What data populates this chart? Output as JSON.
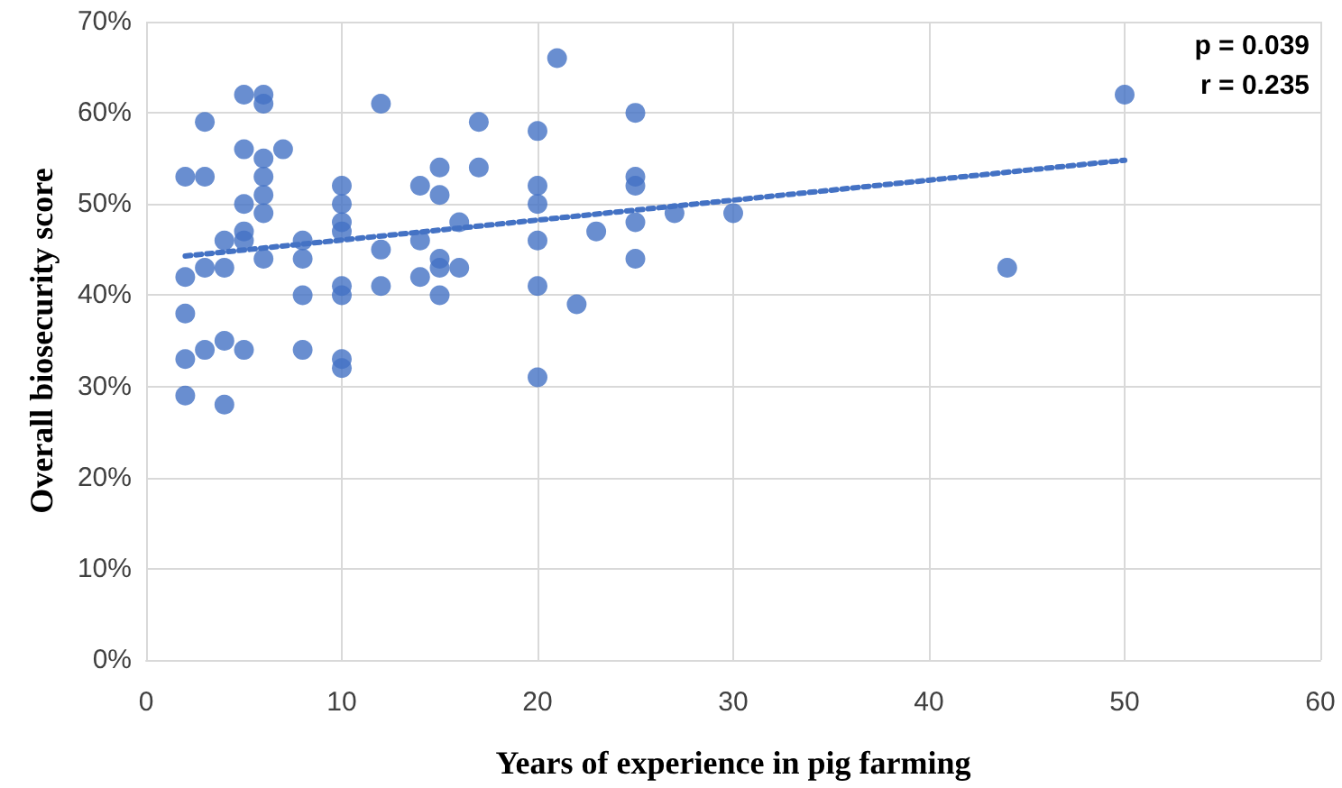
{
  "chart_data": {
    "type": "scatter",
    "xlabel": "Years of experience in pig farming",
    "ylabel": "Overall biosecurity score",
    "xlim": [
      0,
      60
    ],
    "xticks": [
      0,
      10,
      20,
      30,
      40,
      50,
      60
    ],
    "ylim": [
      0,
      70
    ],
    "yticks": [
      {
        "value": 0,
        "label": "0%"
      },
      {
        "value": 10,
        "label": "10%"
      },
      {
        "value": 20,
        "label": "20%"
      },
      {
        "value": 30,
        "label": "30%"
      },
      {
        "value": 40,
        "label": "40%"
      },
      {
        "value": 50,
        "label": "50%"
      },
      {
        "value": 60,
        "label": "60%"
      },
      {
        "value": 70,
        "label": "70%"
      }
    ],
    "grid": true,
    "marker": "circle",
    "annotations": [
      "p = 0.039",
      "r = 0.235"
    ],
    "series": [
      {
        "type": "scatter",
        "color": "#4472c4",
        "x": [
          2,
          2,
          2,
          2,
          2,
          3,
          3,
          3,
          3,
          4,
          4,
          4,
          4,
          5,
          5,
          5,
          5,
          5,
          5,
          6,
          6,
          6,
          6,
          6,
          6,
          6,
          7,
          8,
          8,
          8,
          8,
          10,
          10,
          10,
          10,
          10,
          10,
          10,
          10,
          12,
          12,
          12,
          14,
          14,
          14,
          15,
          15,
          15,
          15,
          15,
          16,
          16,
          17,
          17,
          20,
          20,
          20,
          20,
          20,
          20,
          21,
          22,
          23,
          25,
          25,
          25,
          25,
          25,
          27,
          30,
          44,
          50
        ],
        "values": [
          53,
          42,
          38,
          33,
          29,
          59,
          53,
          43,
          34,
          46,
          43,
          35,
          28,
          62,
          56,
          50,
          47,
          46,
          34,
          62,
          61,
          55,
          53,
          51,
          49,
          44,
          56,
          46,
          44,
          40,
          34,
          52,
          50,
          48,
          47,
          41,
          40,
          33,
          32,
          61,
          45,
          41,
          52,
          46,
          42,
          54,
          51,
          44,
          43,
          40,
          48,
          43,
          59,
          54,
          58,
          52,
          50,
          46,
          41,
          31,
          66,
          39,
          47,
          60,
          53,
          52,
          48,
          44,
          49,
          49,
          43,
          62
        ]
      },
      {
        "type": "line",
        "color": "#4472c4",
        "line_style": "dotted",
        "marker": "none",
        "x": [
          2,
          50
        ],
        "values": [
          44.3,
          54.8
        ]
      }
    ]
  }
}
